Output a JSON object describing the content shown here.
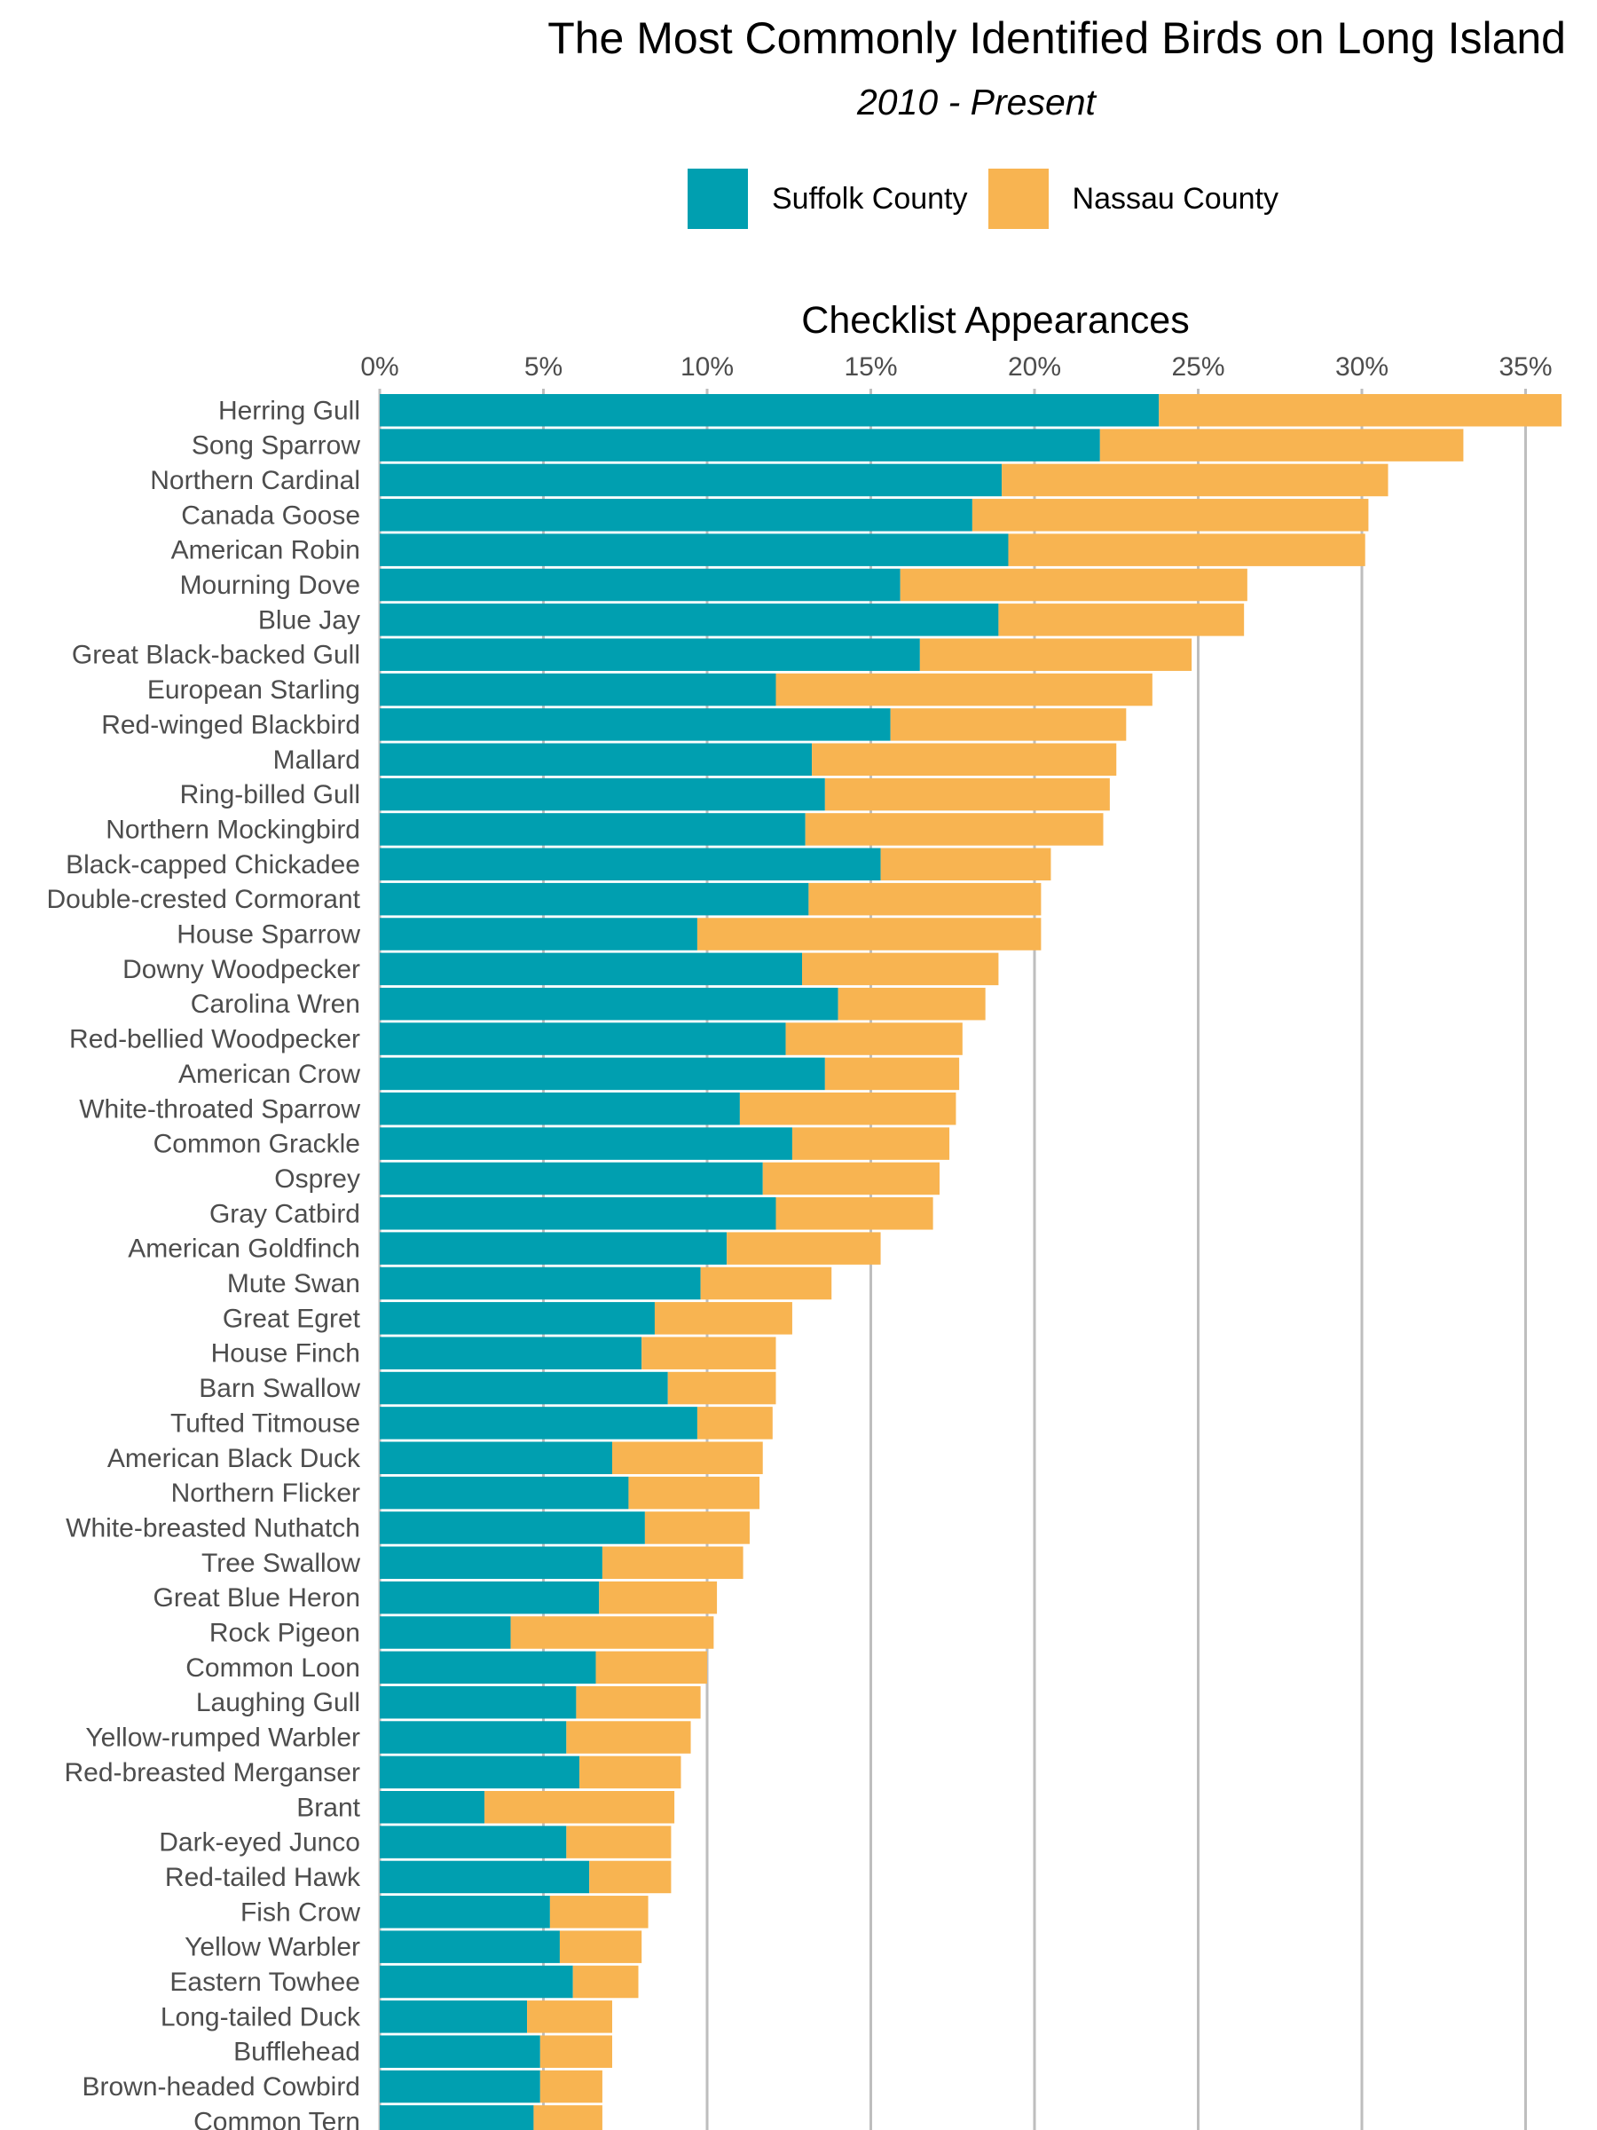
{
  "colors": {
    "suffolk": "#009FB0",
    "nassau": "#F8B451",
    "grid": "#BEBEBE"
  },
  "chart_data": {
    "type": "bar",
    "orientation": "horizontal",
    "stacked": true,
    "title": "The Most Commonly Identified Birds on Long Island",
    "subtitle": "2010 - Present",
    "xlabel": "Checklist Appearances",
    "xlim": [
      0,
      36
    ],
    "xticks": [
      0,
      5,
      10,
      15,
      20,
      25,
      30,
      35
    ],
    "xtick_labels": [
      "0%",
      "5%",
      "10%",
      "15%",
      "20%",
      "25%",
      "30%",
      "35%"
    ],
    "axis_position": "top",
    "grid": "vertical major",
    "legend_position": "top",
    "categories": [
      "Herring Gull",
      "Song Sparrow",
      "Northern Cardinal",
      "Canada Goose",
      "American Robin",
      "Mourning Dove",
      "Blue Jay",
      "Great Black-backed Gull",
      "European Starling",
      "Red-winged Blackbird",
      "Mallard",
      "Ring-billed Gull",
      "Northern Mockingbird",
      "Black-capped Chickadee",
      "Double-crested Cormorant",
      "House Sparrow",
      "Downy Woodpecker",
      "Carolina Wren",
      "Red-bellied Woodpecker",
      "American Crow",
      "White-throated Sparrow",
      "Common Grackle",
      "Osprey",
      "Gray Catbird",
      "American Goldfinch",
      "Mute Swan",
      "Great Egret",
      "House Finch",
      "Barn Swallow",
      "Tufted Titmouse",
      "American Black Duck",
      "Northern Flicker",
      "White-breasted Nuthatch",
      "Tree Swallow",
      "Great Blue Heron",
      "Rock Pigeon",
      "Common Loon",
      "Laughing Gull",
      "Yellow-rumped Warbler",
      "Red-breasted Merganser",
      "Brant",
      "Dark-eyed Junco",
      "Red-tailed Hawk",
      "Fish Crow",
      "Yellow Warbler",
      "Eastern Towhee",
      "Long-tailed Duck",
      "Bufflehead",
      "Brown-headed Cowbird",
      "Common Tern"
    ],
    "series": [
      {
        "name": "Suffolk County",
        "values": [
          23.8,
          22.0,
          19.0,
          18.1,
          19.2,
          15.9,
          18.9,
          16.5,
          12.1,
          15.6,
          13.2,
          13.6,
          13.0,
          15.3,
          13.1,
          9.7,
          12.9,
          14.0,
          12.4,
          13.6,
          11.0,
          12.6,
          11.7,
          12.1,
          10.6,
          9.8,
          8.4,
          8.0,
          8.8,
          9.7,
          7.1,
          7.6,
          8.1,
          6.8,
          6.7,
          4.0,
          6.6,
          6.0,
          5.7,
          6.1,
          3.2,
          5.7,
          6.4,
          5.2,
          5.5,
          5.9,
          4.5,
          4.9,
          4.9,
          4.7
        ]
      },
      {
        "name": "Nassau County",
        "values": [
          12.3,
          11.1,
          11.8,
          12.1,
          10.9,
          10.6,
          7.5,
          8.3,
          11.5,
          7.2,
          9.3,
          8.7,
          9.1,
          5.2,
          7.1,
          10.5,
          6.0,
          4.5,
          5.4,
          4.1,
          6.6,
          4.8,
          5.4,
          4.8,
          4.7,
          4.0,
          4.2,
          4.1,
          3.3,
          2.3,
          4.6,
          4.0,
          3.2,
          4.3,
          3.6,
          6.2,
          3.4,
          3.8,
          3.8,
          3.1,
          5.8,
          3.2,
          2.5,
          3.0,
          2.5,
          2.0,
          2.6,
          2.2,
          1.9,
          2.1
        ]
      }
    ]
  }
}
